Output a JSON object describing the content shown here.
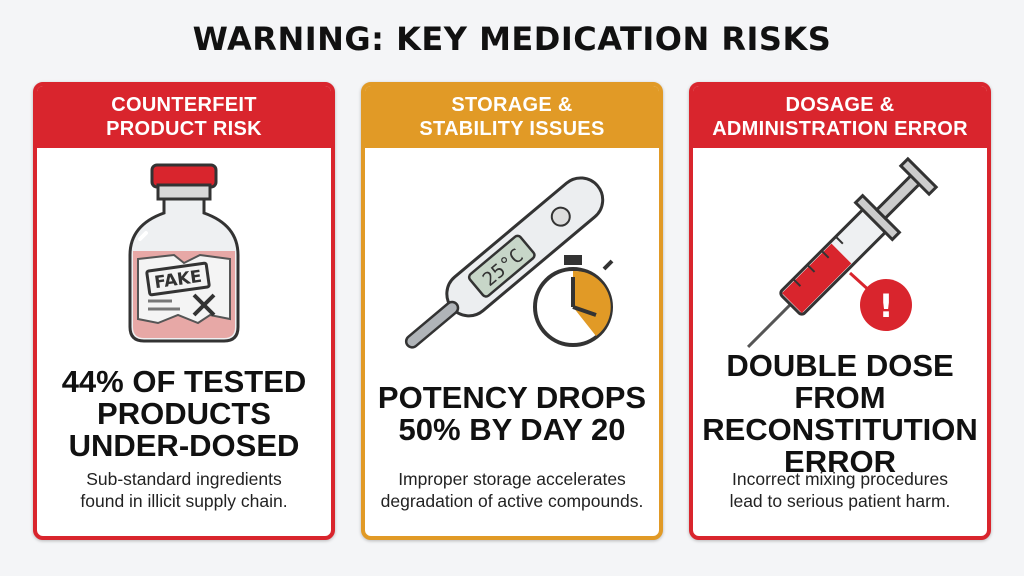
{
  "title": "WARNING: KEY MEDICATION RISKS",
  "colors": {
    "red": "#d9252d",
    "amber": "#e19a26"
  },
  "cards": [
    {
      "header": "COUNTERFEIT\nPRODUCT RISK",
      "icon": "counterfeit-vial-icon",
      "label": "FAKE",
      "stat": "44% OF TESTED\nPRODUCTS\nUNDER-DOSED",
      "desc": "Sub-standard ingredients\nfound in illicit supply chain."
    },
    {
      "header": "STORAGE &\nSTABILITY ISSUES",
      "icon": "thermometer-stopwatch-icon",
      "label": "25°C",
      "stat": "POTENCY DROPS\n50% BY DAY 20",
      "desc": "Improper storage accelerates\ndegradation of active compounds."
    },
    {
      "header": "DOSAGE &\nADMINISTRATION ERROR",
      "icon": "syringe-warning-icon",
      "label": "!",
      "stat": "DOUBLE DOSE FROM\nRECONSTITUTION\nERROR",
      "desc": "Incorrect mixing procedures\nlead to serious patient harm."
    }
  ]
}
